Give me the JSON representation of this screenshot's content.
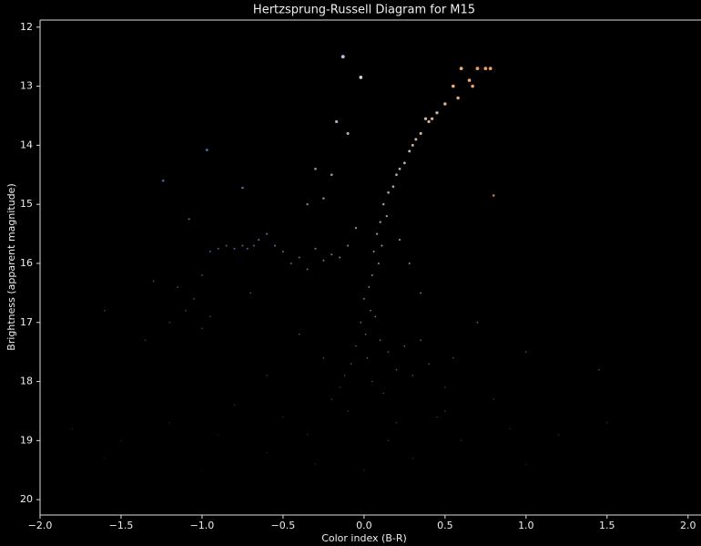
{
  "chart_data": {
    "type": "scatter",
    "title": "Hertzsprung-Russell Diagram for M15",
    "xlabel": "Color index (B-R)",
    "ylabel": "Brightness (apparent magnitude)",
    "x": [
      0.78,
      0.75,
      0.7,
      0.65,
      0.6,
      0.67,
      0.55,
      0.58,
      0.5,
      0.45,
      0.42,
      0.38,
      0.35,
      0.4,
      0.32,
      0.3,
      0.28,
      0.25,
      0.22,
      0.2,
      0.18,
      0.15,
      0.12,
      0.14,
      0.1,
      0.08,
      0.11,
      0.06,
      0.09,
      0.05,
      0.03,
      0.0,
      0.04,
      -0.02,
      0.07,
      0.01,
      -0.05,
      0.1,
      0.02,
      -0.08,
      0.15,
      0.2,
      -0.12,
      0.25,
      0.05,
      -0.15,
      0.3,
      -0.2,
      0.12,
      0.35,
      -0.95,
      -0.9,
      -0.85,
      -0.8,
      -0.75,
      -0.72,
      -0.68,
      -0.65,
      -0.6,
      -0.55,
      -0.5,
      -0.45,
      -0.4,
      -0.35,
      -0.3,
      -0.25,
      -0.2,
      -0.15,
      -0.1,
      -0.05,
      -1.0,
      -1.05,
      -1.1,
      -1.15,
      -1.2,
      -1.3,
      -1.0,
      -0.95,
      -1.08,
      -1.35,
      -0.13,
      -0.02,
      -0.17,
      -0.1,
      0.8,
      -0.3,
      -0.2,
      -1.24,
      -0.97,
      -0.75,
      -1.8,
      -1.5,
      -1.2,
      -0.9,
      -0.6,
      -0.3,
      0.3,
      0.6,
      0.9,
      1.2,
      1.5,
      -1.6,
      -1.0,
      -0.5,
      0.0,
      0.5,
      1.0,
      -0.8,
      0.8,
      1.45,
      -0.4,
      -0.25,
      0.4,
      0.5,
      -0.6,
      0.2,
      -0.35,
      0.45,
      -0.1,
      0.15,
      1.0,
      0.7,
      -0.35,
      -0.7,
      -1.6,
      0.55,
      -0.25,
      0.28,
      0.35,
      0.22
    ],
    "values": [
      12.7,
      12.7,
      12.7,
      12.9,
      12.7,
      13.0,
      13.0,
      13.2,
      13.3,
      13.45,
      13.55,
      13.55,
      13.8,
      13.6,
      13.9,
      14.0,
      14.1,
      14.3,
      14.4,
      14.5,
      14.7,
      14.8,
      15.0,
      15.2,
      15.3,
      15.5,
      15.7,
      15.8,
      16.0,
      16.2,
      16.4,
      16.6,
      16.8,
      17.0,
      16.9,
      17.2,
      17.4,
      17.3,
      17.6,
      17.7,
      17.5,
      17.8,
      17.9,
      17.4,
      18.0,
      18.1,
      17.9,
      18.3,
      18.2,
      17.3,
      15.8,
      15.75,
      15.7,
      15.75,
      15.7,
      15.75,
      15.7,
      15.6,
      15.5,
      15.7,
      15.8,
      16.0,
      15.9,
      16.1,
      15.75,
      15.95,
      15.85,
      15.9,
      15.7,
      15.4,
      16.2,
      16.6,
      16.8,
      16.4,
      17.0,
      16.3,
      17.1,
      16.9,
      15.25,
      17.3,
      12.5,
      12.85,
      13.6,
      13.8,
      14.85,
      14.4,
      14.5,
      14.6,
      14.08,
      14.72,
      18.8,
      19.0,
      18.7,
      18.9,
      19.2,
      19.4,
      19.3,
      19.0,
      18.8,
      18.9,
      18.7,
      19.3,
      19.5,
      18.6,
      19.5,
      18.5,
      19.4,
      18.4,
      18.3,
      17.8,
      17.2,
      17.6,
      17.7,
      18.1,
      17.9,
      18.7,
      18.9,
      18.6,
      18.5,
      19.0,
      17.5,
      17.0,
      15.0,
      16.5,
      16.8,
      17.6,
      14.9,
      16.0,
      16.5,
      15.6
    ],
    "colormap": [
      "#4a7fc9",
      "#dddddd",
      "#f2a060"
    ],
    "xlim": [
      -2,
      2.08
    ],
    "xticks": [
      {
        "value": -2,
        "label": "−2.0"
      },
      {
        "value": -1.5,
        "label": "−1.5"
      },
      {
        "value": -1,
        "label": "−1.0"
      },
      {
        "value": -0.5,
        "label": "−0.5"
      },
      {
        "value": 0,
        "label": "0.0"
      },
      {
        "value": 0.5,
        "label": "0.5"
      },
      {
        "value": 1,
        "label": "1.0"
      },
      {
        "value": 1.5,
        "label": "1.5"
      },
      {
        "value": 2,
        "label": "2.0"
      }
    ],
    "ylim": [
      20.26,
      11.88
    ],
    "yticks": [
      12,
      13,
      14,
      15,
      16,
      17,
      18,
      19,
      20
    ],
    "grid": false
  }
}
